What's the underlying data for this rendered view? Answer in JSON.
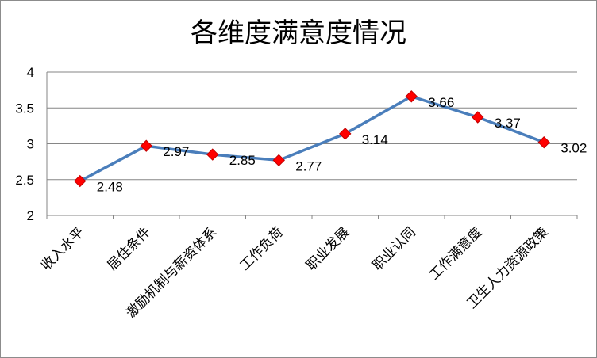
{
  "chart_data": {
    "type": "line",
    "title": "各维度满意度情况",
    "xlabel": "",
    "ylabel": "",
    "categories": [
      "收入水平",
      "居住条件",
      "激励机制与薪资体系",
      "工作负荷",
      "职业发展",
      "职业认同",
      "工作满意度",
      "卫生人力资源政策"
    ],
    "series": [
      {
        "values": [
          2.48,
          2.97,
          2.85,
          2.77,
          3.14,
          3.66,
          3.37,
          3.02
        ]
      }
    ],
    "data_labels": [
      "2.48",
      "2.97",
      "2.85",
      "2.77",
      "3.14",
      "3.66",
      "3.37",
      "3.02"
    ],
    "ylim": [
      2,
      4
    ],
    "yticks": [
      "2",
      "2.5",
      "3",
      "3.5",
      "4"
    ],
    "grid": true,
    "legend": "none",
    "colors": {
      "line": "#4a7ebb",
      "marker": "#ff0000",
      "grid": "#868686"
    }
  }
}
